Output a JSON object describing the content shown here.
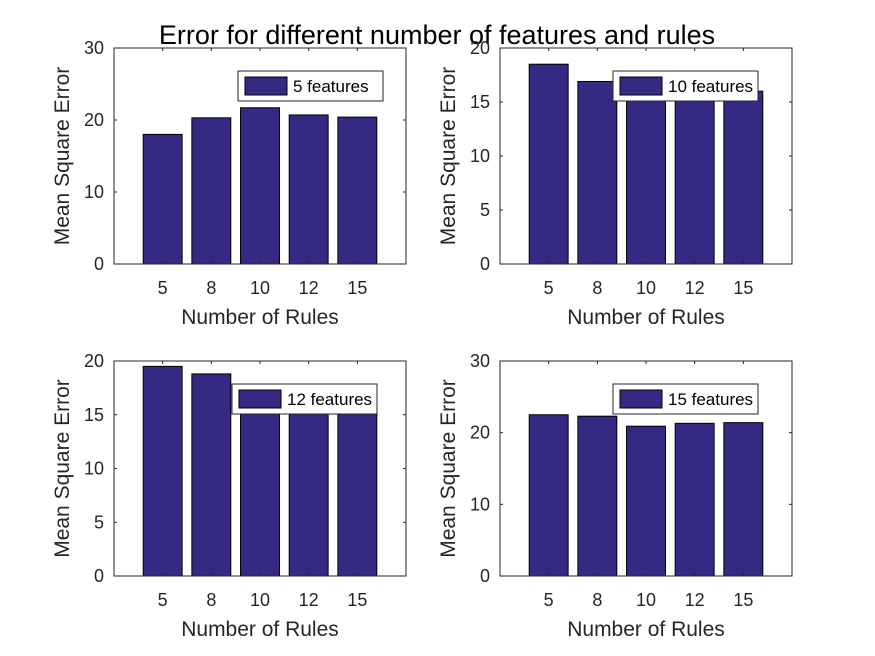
{
  "figure": {
    "title": "Error for different number of features and rules"
  },
  "chart_data": [
    {
      "type": "bar",
      "categories": [
        "5",
        "8",
        "10",
        "12",
        "15"
      ],
      "series": [
        {
          "name": "5 features",
          "values": [
            18.0,
            20.3,
            21.7,
            20.7,
            20.4
          ]
        }
      ],
      "xlabel": "Number of Rules",
      "ylabel": "Mean Square Error",
      "ylim": [
        0,
        30
      ],
      "yticks": [
        "0",
        "10",
        "20",
        "30"
      ],
      "bar_color": "#342a83",
      "legend": "top-right",
      "grid": false
    },
    {
      "type": "bar",
      "categories": [
        "5",
        "8",
        "10",
        "12",
        "15"
      ],
      "series": [
        {
          "name": "10 features",
          "values": [
            18.5,
            16.9,
            16.0,
            16.0,
            16.0
          ]
        }
      ],
      "xlabel": "Number of Rules",
      "ylabel": "Mean Square Error",
      "ylim": [
        0,
        20
      ],
      "yticks": [
        "0",
        "5",
        "10",
        "15",
        "20"
      ],
      "bar_color": "#342a83",
      "legend": "top-right",
      "grid": false
    },
    {
      "type": "bar",
      "categories": [
        "5",
        "8",
        "10",
        "12",
        "15"
      ],
      "series": [
        {
          "name": "12 features",
          "values": [
            19.5,
            18.8,
            16.0,
            16.0,
            16.0
          ]
        }
      ],
      "xlabel": "Number of Rules",
      "ylabel": "Mean Square Error",
      "ylim": [
        0,
        20
      ],
      "yticks": [
        "0",
        "5",
        "10",
        "15",
        "20"
      ],
      "bar_color": "#342a83",
      "legend": "top-right",
      "grid": false
    },
    {
      "type": "bar",
      "categories": [
        "5",
        "8",
        "10",
        "12",
        "15"
      ],
      "series": [
        {
          "name": "15 features",
          "values": [
            22.5,
            22.3,
            20.9,
            21.3,
            21.4
          ]
        }
      ],
      "xlabel": "Number of Rules",
      "ylabel": "Mean Square Error",
      "ylim": [
        0,
        30
      ],
      "yticks": [
        "0",
        "10",
        "20",
        "30"
      ],
      "bar_color": "#342a83",
      "legend": "top-right",
      "grid": false
    }
  ]
}
